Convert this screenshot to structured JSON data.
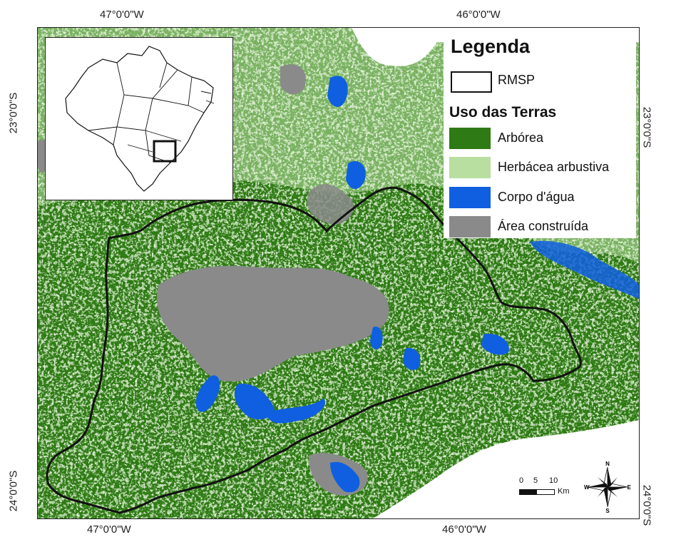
{
  "coordinates": {
    "top_left": "47°0'0\"W",
    "top_right": "46°0'0\"W",
    "bottom_left": "47°0'0\"W",
    "bottom_right": "46°0'0\"W",
    "left_top": "23°0'0\"S",
    "left_bottom": "24°0'0\"S",
    "right_top": "23°0'0\"S",
    "right_bottom": "24°0'0\"S"
  },
  "legend": {
    "title": "Legenda",
    "boundary_label": "RMSP",
    "section_title": "Uso das Terras",
    "classes": [
      {
        "label": "Arbórea",
        "color": "#2e7a14"
      },
      {
        "label": "Herbácea arbustiva",
        "color": "#b8dea0"
      },
      {
        "label": "Corpo d'água",
        "color": "#0f5fe0"
      },
      {
        "label": "Área construída",
        "color": "#8a8a8a"
      }
    ]
  },
  "scale": {
    "tick_0": "0",
    "tick_5": "5",
    "tick_10": "10",
    "unit": "Km"
  },
  "north_arrow": {
    "n": "N",
    "s": "S",
    "e": "E",
    "w": "W"
  }
}
